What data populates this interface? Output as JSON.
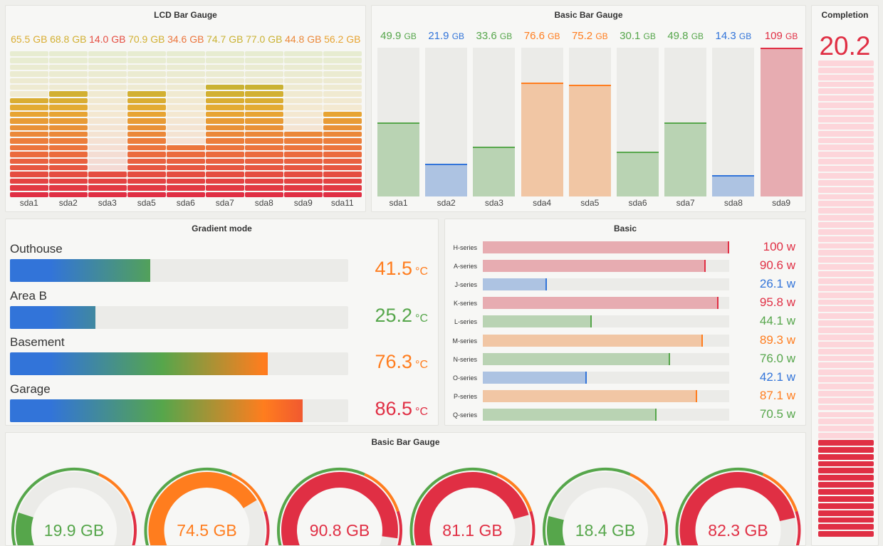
{
  "lcd": {
    "title": "LCD Bar Gauge",
    "unit": "GB",
    "max": 100,
    "cells": 22,
    "items": [
      {
        "label": "sda1",
        "value": "65.5"
      },
      {
        "label": "sda2",
        "value": "68.8"
      },
      {
        "label": "sda3",
        "value": "14.0"
      },
      {
        "label": "sda5",
        "value": "70.9"
      },
      {
        "label": "sda6",
        "value": "34.6"
      },
      {
        "label": "sda7",
        "value": "74.7"
      },
      {
        "label": "sda8",
        "value": "77.0"
      },
      {
        "label": "sda9",
        "value": "44.8"
      },
      {
        "label": "sda11",
        "value": "56.2"
      }
    ]
  },
  "vbar": {
    "title": "Basic Bar Gauge",
    "unit": "GB",
    "max": 100,
    "items": [
      {
        "label": "sda1",
        "value": "49.9",
        "color": "#56a64b"
      },
      {
        "label": "sda2",
        "value": "21.9",
        "color": "#3274d9"
      },
      {
        "label": "sda3",
        "value": "33.6",
        "color": "#56a64b"
      },
      {
        "label": "sda4",
        "value": "76.6",
        "color": "#ff7d1e"
      },
      {
        "label": "sda5",
        "value": "75.2",
        "color": "#ff7d1e"
      },
      {
        "label": "sda6",
        "value": "30.1",
        "color": "#56a64b"
      },
      {
        "label": "sda7",
        "value": "49.8",
        "color": "#56a64b"
      },
      {
        "label": "sda8",
        "value": "14.3",
        "color": "#3274d9"
      },
      {
        "label": "sda9",
        "value": "109",
        "color": "#e02f44"
      }
    ]
  },
  "completion": {
    "title": "Completion",
    "value": "20.2",
    "color": "#e02f44"
  },
  "gradient": {
    "title": "Gradient mode",
    "unit": "°C",
    "max": 100,
    "items": [
      {
        "label": "Outhouse",
        "value": "41.5",
        "color": "#ff7d1e"
      },
      {
        "label": "Area B",
        "value": "25.2",
        "color": "#56a64b"
      },
      {
        "label": "Basement",
        "value": "76.3",
        "color": "#ff7d1e"
      },
      {
        "label": "Garage",
        "value": "86.5",
        "color": "#e02f44"
      }
    ]
  },
  "basic": {
    "title": "Basic",
    "unit": "w",
    "max": 100,
    "items": [
      {
        "label": "H-series",
        "value": "100",
        "color": "#e02f44"
      },
      {
        "label": "A-series",
        "value": "90.6",
        "color": "#e02f44"
      },
      {
        "label": "J-series",
        "value": "26.1",
        "color": "#3274d9"
      },
      {
        "label": "K-series",
        "value": "95.8",
        "color": "#e02f44"
      },
      {
        "label": "L-series",
        "value": "44.1",
        "color": "#56a64b"
      },
      {
        "label": "M-series",
        "value": "89.3",
        "color": "#ff7d1e"
      },
      {
        "label": "N-series",
        "value": "76.0",
        "color": "#56a64b"
      },
      {
        "label": "O-series",
        "value": "42.1",
        "color": "#3274d9"
      },
      {
        "label": "P-series",
        "value": "87.1",
        "color": "#ff7d1e"
      },
      {
        "label": "Q-series",
        "value": "70.5",
        "color": "#56a64b"
      }
    ]
  },
  "gauges": {
    "title": "Basic Bar Gauge",
    "unit": "GB",
    "max": 100,
    "thresholds": [
      {
        "from": 0,
        "color": "#56a64b"
      },
      {
        "from": 60,
        "color": "#ff7d1e"
      },
      {
        "from": 80,
        "color": "#e02f44"
      }
    ],
    "items": [
      {
        "value": "19.9",
        "color": "#56a64b"
      },
      {
        "value": "74.5",
        "color": "#ff7d1e"
      },
      {
        "value": "90.8",
        "color": "#e02f44"
      },
      {
        "value": "81.1",
        "color": "#e02f44"
      },
      {
        "value": "18.4",
        "color": "#56a64b"
      },
      {
        "value": "82.3",
        "color": "#e02f44"
      }
    ]
  }
}
